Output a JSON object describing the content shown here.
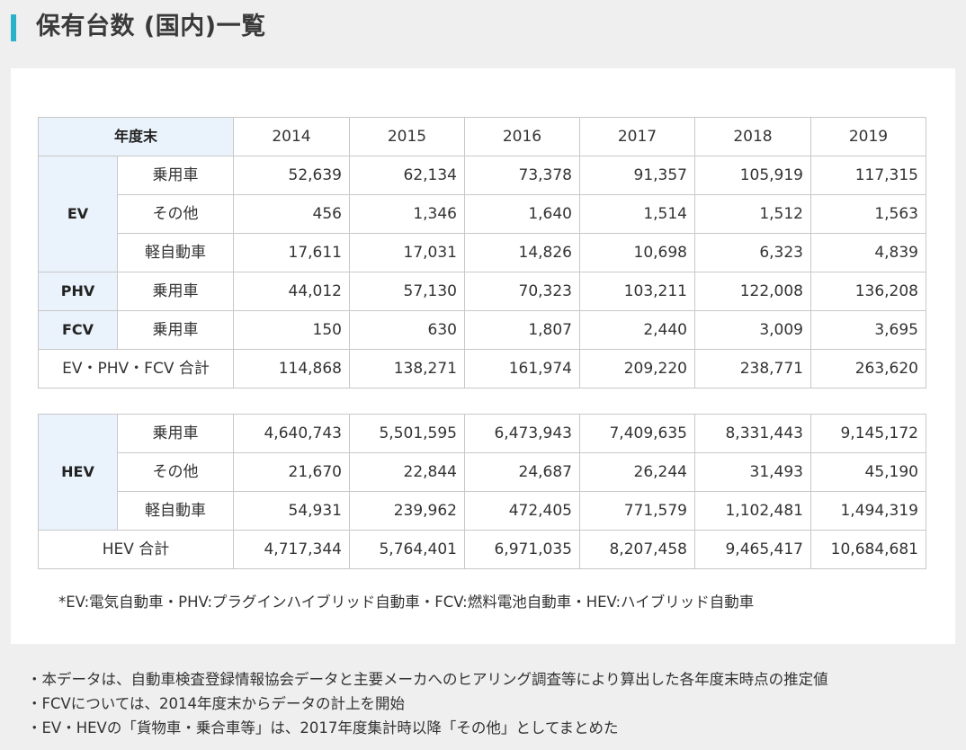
{
  "page": {
    "title": "保有台数 (国内)一覧",
    "accent_color": "#2ab0c8",
    "header_cell_color": "#eaf2fb"
  },
  "table": {
    "header_label": "年度末",
    "years": [
      "2014",
      "2015",
      "2016",
      "2017",
      "2018",
      "2019"
    ],
    "group1": {
      "ev": {
        "label": "EV",
        "rows": [
          {
            "sub": "乗用車",
            "values": [
              "52,639",
              "62,134",
              "73,378",
              "91,357",
              "105,919",
              "117,315"
            ]
          },
          {
            "sub": "その他",
            "values": [
              "456",
              "1,346",
              "1,640",
              "1,514",
              "1,512",
              "1,563"
            ]
          },
          {
            "sub": "軽自動車",
            "values": [
              "17,611",
              "17,031",
              "14,826",
              "10,698",
              "6,323",
              "4,839"
            ]
          }
        ]
      },
      "phv": {
        "label": "PHV",
        "rows": [
          {
            "sub": "乗用車",
            "values": [
              "44,012",
              "57,130",
              "70,323",
              "103,211",
              "122,008",
              "136,208"
            ]
          }
        ]
      },
      "fcv": {
        "label": "FCV",
        "rows": [
          {
            "sub": "乗用車",
            "values": [
              "150",
              "630",
              "1,807",
              "2,440",
              "3,009",
              "3,695"
            ]
          }
        ]
      },
      "total": {
        "label": "EV・PHV・FCV 合計",
        "values": [
          "114,868",
          "138,271",
          "161,974",
          "209,220",
          "238,771",
          "263,620"
        ]
      }
    },
    "group2": {
      "hev": {
        "label": "HEV",
        "rows": [
          {
            "sub": "乗用車",
            "values": [
              "4,640,743",
              "5,501,595",
              "6,473,943",
              "7,409,635",
              "8,331,443",
              "9,145,172"
            ]
          },
          {
            "sub": "その他",
            "values": [
              "21,670",
              "22,844",
              "24,687",
              "26,244",
              "31,493",
              "45,190"
            ]
          },
          {
            "sub": "軽自動車",
            "values": [
              "54,931",
              "239,962",
              "472,405",
              "771,579",
              "1,102,481",
              "1,494,319"
            ]
          }
        ]
      },
      "total": {
        "label": "HEV 合計",
        "values": [
          "4,717,344",
          "5,764,401",
          "6,971,035",
          "8,207,458",
          "9,465,417",
          "10,684,681"
        ]
      }
    }
  },
  "footnote": "*EV:電気自動車・PHV:プラグインハイブリッド自動車・FCV:燃料電池自動車・HEV:ハイブリッド自動車",
  "notes": [
    "・本データは、自動車検査登録情報協会データと主要メーカへのヒアリング調査等により算出した各年度末時点の推定値",
    "・FCVについては、2014年度末からデータの計上を開始",
    "・EV・HEVの「貨物車・乗合車等」は、2017年度集計時以降「その他」としてまとめた"
  ]
}
